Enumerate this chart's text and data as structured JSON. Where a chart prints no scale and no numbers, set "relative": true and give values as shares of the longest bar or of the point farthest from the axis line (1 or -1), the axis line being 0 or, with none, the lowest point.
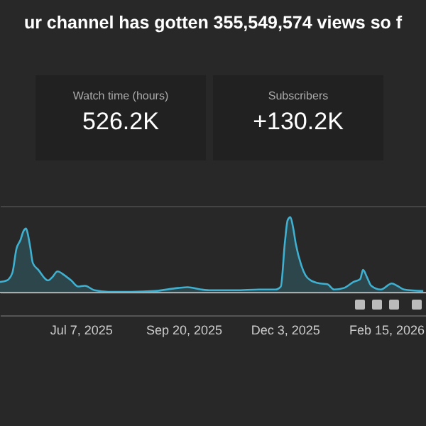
{
  "chart_data": {
    "type": "area",
    "title": "ur channel has gotten 355,549,574 views so f",
    "relative": true,
    "annotations": [
      "Watch time (hours)",
      "526.2K",
      "Subscribers",
      "+130.2K"
    ],
    "x": [
      "2025-05-09",
      "2025-05-14",
      "2025-05-18",
      "2025-05-21",
      "2025-05-24",
      "2025-05-26",
      "2025-05-28",
      "2025-05-29",
      "2025-05-31",
      "2025-06-02",
      "2025-06-06",
      "2025-06-13",
      "2025-06-16",
      "2025-06-20",
      "2025-06-25",
      "2025-06-30",
      "2025-07-05",
      "2025-07-10",
      "2025-07-17",
      "2025-07-27",
      "2025-08-13",
      "2025-08-30",
      "2025-09-16",
      "2025-09-23",
      "2025-10-03",
      "2025-10-10",
      "2025-10-28",
      "2025-11-14",
      "2025-11-26",
      "2025-11-30",
      "2025-12-03",
      "2025-12-05",
      "2025-12-07",
      "2025-12-09",
      "2025-12-11",
      "2025-12-15",
      "2025-12-18",
      "2025-12-22",
      "2025-12-29",
      "2026-01-03",
      "2026-01-08",
      "2026-01-15",
      "2026-01-22",
      "2026-01-27",
      "2026-01-29",
      "2026-02-01",
      "2026-02-04",
      "2026-02-11",
      "2026-02-19",
      "2026-02-23",
      "2026-02-28",
      "2026-03-14"
    ],
    "series": [
      {
        "color": "#3fb0cf",
        "values": [
          0.14,
          0.16,
          0.26,
          0.58,
          0.7,
          0.81,
          0.85,
          0.8,
          0.61,
          0.39,
          0.3,
          0.16,
          0.2,
          0.28,
          0.23,
          0.16,
          0.08,
          0.09,
          0.03,
          0.01,
          0.01,
          0.02,
          0.06,
          0.07,
          0.04,
          0.03,
          0.03,
          0.04,
          0.04,
          0.08,
          0.67,
          0.96,
          1.0,
          0.86,
          0.64,
          0.36,
          0.23,
          0.16,
          0.12,
          0.11,
          0.04,
          0.06,
          0.14,
          0.18,
          0.3,
          0.2,
          0.09,
          0.04,
          0.12,
          0.09,
          0.04,
          0.02
        ]
      }
    ],
    "xlim": [
      "2025-05-09",
      "2026-03-16"
    ],
    "xticks": [
      {
        "value": "2025-07-07",
        "label": "Jul 7, 2025"
      },
      {
        "value": "2025-09-20",
        "label": "Sep 20, 2025"
      },
      {
        "value": "2025-12-03",
        "label": "Dec 3, 2025"
      },
      {
        "value": "2026-02-15",
        "label": "Feb 15, 2026"
      }
    ],
    "grid": "y",
    "tick_labels": "x"
  }
}
